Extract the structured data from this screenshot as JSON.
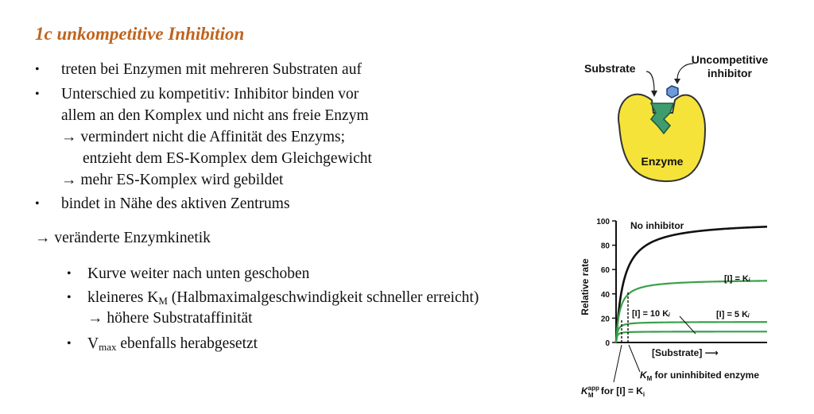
{
  "title": "1c unkompetitive Inhibition",
  "bullets": [
    "treten bei Enzymen mit mehreren Substraten auf",
    "Unterschied zu kompetitiv: Inhibitor binden vor",
    "bindet in Nähe des aktiven Zentrums"
  ],
  "bullet2_continuation": "allem an den Komplex und nicht ans freie Enzym",
  "arrow_lines": [
    "→ vermindert nicht die Affinität des Enzyms;",
    "entzieht dem ES-Komplex dem Gleichgewicht",
    "→ mehr ES-Komplex wird gebildet"
  ],
  "kinetics_heading": "→ veränderte Enzymkinetik",
  "sub_bullets": {
    "b1": "Kurve weiter nach unten geschoben",
    "b2_prefix": "kleineres K",
    "b2_sub": "M",
    "b2_suffix": " (Halbmaximalgeschwindigkeit schneller erreicht)",
    "b2_arrow": "→ höhere Substrataffinität",
    "b3_prefix": "V",
    "b3_sub": "max",
    "b3_suffix": " ebenfalls herabgesetzt"
  },
  "diagram": {
    "substrate_label": "Substrate",
    "inhibitor_label_line1": "Uncompetitive",
    "inhibitor_label_line2": "inhibitor",
    "enzyme_label": "Enzyme",
    "colors": {
      "enzyme": "#f6e33a",
      "substrate": "#3e9c6e",
      "inhibitor": "#6c9bd6"
    }
  },
  "chart_data": {
    "type": "line",
    "xlabel": "[Substrate] ⟶",
    "ylabel": "Relative rate",
    "ylim": [
      0,
      100
    ],
    "yticks": [
      "0",
      "20",
      "40",
      "60",
      "80",
      "100"
    ],
    "series": [
      {
        "name": "No inhibitor",
        "vmax": 100,
        "km": 5,
        "color": "#111111"
      },
      {
        "name": "[I] = Kᵢ",
        "vmax": 52,
        "km": 2.5,
        "color": "#3aa04a"
      },
      {
        "name": "[I] = 5 Kᵢ",
        "vmax": 17,
        "km": 0.9,
        "color": "#3aa04a"
      },
      {
        "name": "[I] = 10 Kᵢ",
        "vmax": 9,
        "km": 0.5,
        "color": "#3aa04a"
      }
    ],
    "annotations": {
      "km_uninhibited_prefix": "K",
      "km_uninhibited_sub": "M",
      "km_uninhibited_suffix": " for uninhibited enzyme",
      "km_app_prefix": "K",
      "km_app_sub": "M",
      "km_app_sup": "app",
      "km_app_suffix": " for [I] = K",
      "km_app_suffix_sub": "i"
    }
  }
}
